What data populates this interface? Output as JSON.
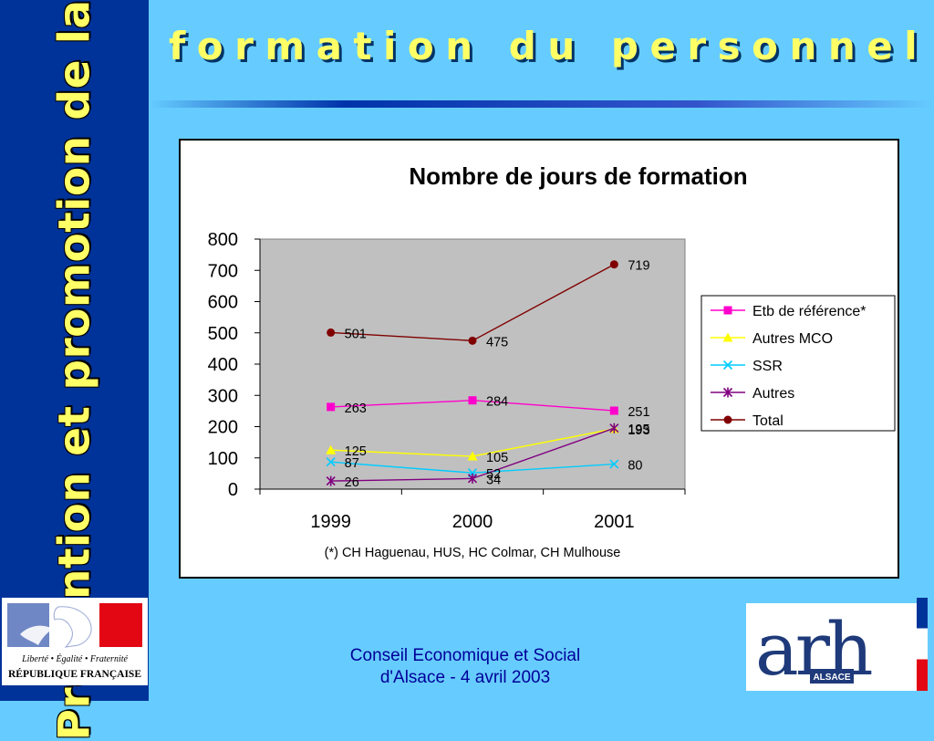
{
  "sidebar": {
    "text": "Prévention et promotion de la santé"
  },
  "slide": {
    "title": "formation du personnel"
  },
  "logo_rf": {
    "motto": "Liberté • Égalité • Fraternité",
    "name": "RÉPUBLIQUE FRANÇAISE"
  },
  "logo_arh": {
    "letters": "arh",
    "region": "ALSACE"
  },
  "footer": {
    "line1": "Conseil Economique et Social",
    "line2": "d'Alsace - 4 avril 2003"
  },
  "chart_data": {
    "type": "line",
    "title": "Nombre de jours de formation",
    "categories": [
      "1999",
      "2000",
      "2001"
    ],
    "ylim": [
      0,
      800
    ],
    "yticks": [
      0,
      100,
      200,
      300,
      400,
      500,
      600,
      700,
      800
    ],
    "legend_position": "right",
    "note": "(*) CH Haguenau, HUS, HC Colmar, CH Mulhouse",
    "series": [
      {
        "name": "Etb de référence*",
        "values": [
          263,
          284,
          251
        ],
        "color": "#ff00cc",
        "marker": "square"
      },
      {
        "name": "Autres MCO",
        "values": [
          125,
          105,
          193
        ],
        "color": "#ffff00",
        "marker": "triangle"
      },
      {
        "name": "SSR",
        "values": [
          87,
          52,
          80
        ],
        "color": "#00ccff",
        "marker": "x"
      },
      {
        "name": "Autres",
        "values": [
          26,
          34,
          195
        ],
        "color": "#800080",
        "marker": "star"
      },
      {
        "name": "Total",
        "values": [
          501,
          475,
          719
        ],
        "color": "#800000",
        "marker": "circle"
      }
    ]
  }
}
